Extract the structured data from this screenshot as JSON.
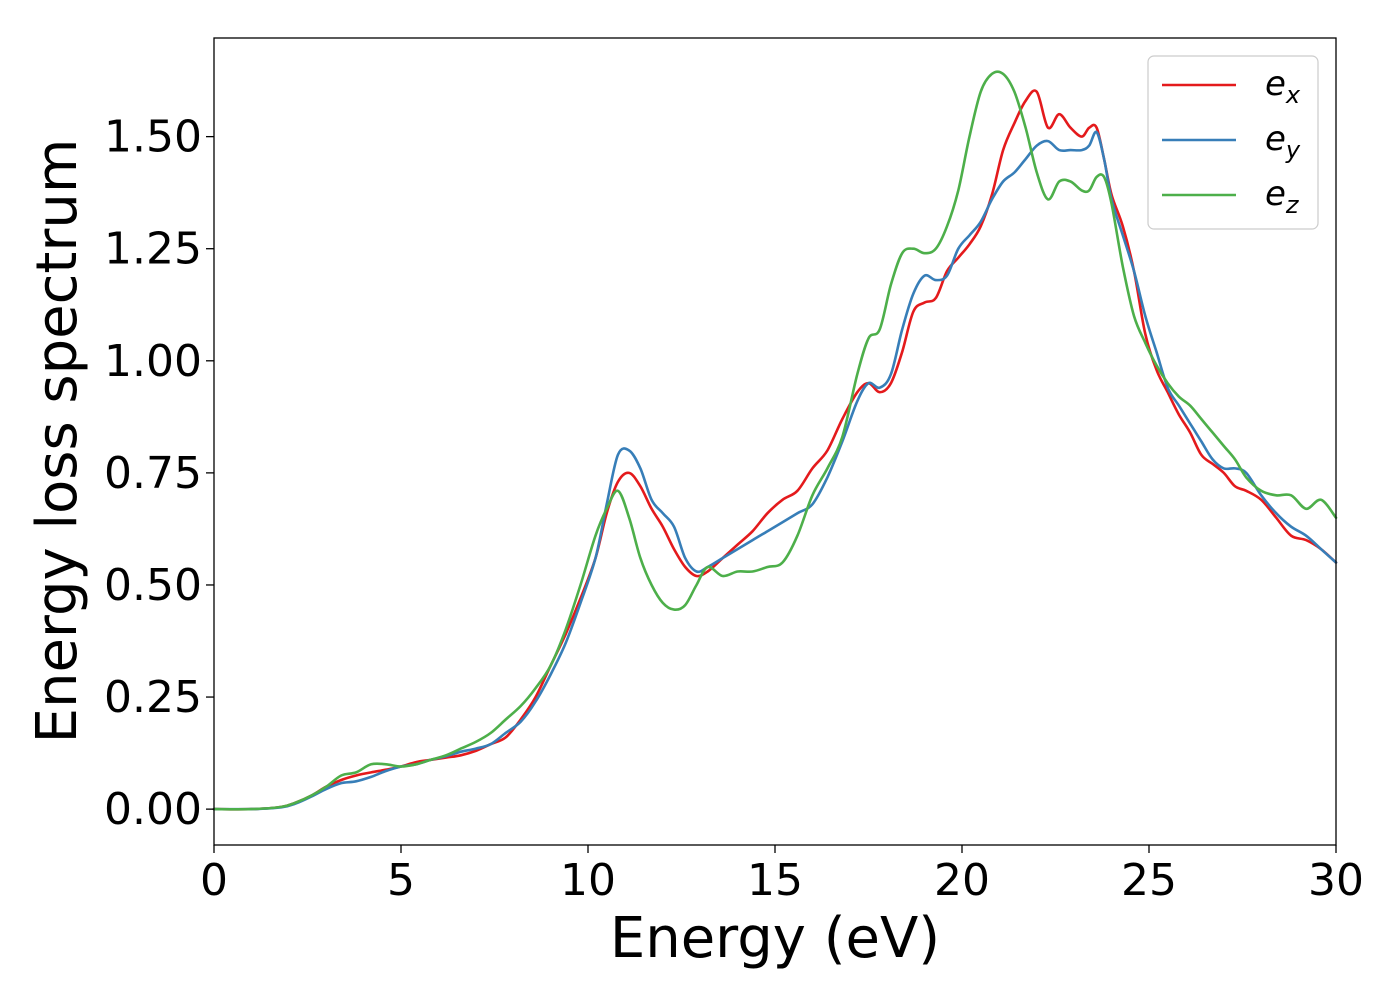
{
  "chart_data": {
    "type": "line",
    "title": "",
    "xlabel": "Energy (eV)",
    "ylabel": "Energy loss spectrum",
    "xlim": [
      0,
      30
    ],
    "ylim": [
      -0.08,
      1.72
    ],
    "xticks": [
      0,
      5,
      10,
      15,
      20,
      25,
      30
    ],
    "xtick_labels": [
      "0",
      "5",
      "10",
      "15",
      "20",
      "25",
      "30"
    ],
    "yticks": [
      0.0,
      0.25,
      0.5,
      0.75,
      1.0,
      1.25,
      1.5
    ],
    "ytick_labels": [
      "0.00",
      "0.25",
      "0.50",
      "0.75",
      "1.00",
      "1.25",
      "1.50"
    ],
    "grid": false,
    "legend": {
      "position": "top-right",
      "entries": [
        {
          "base": "e",
          "sub": "x"
        },
        {
          "base": "e",
          "sub": "y"
        },
        {
          "base": "e",
          "sub": "z"
        }
      ]
    },
    "series": [
      {
        "name": "e_x",
        "color": "#e41a1c",
        "x": [
          0,
          1,
          1.8,
          2.2,
          2.6,
          3,
          3.4,
          3.8,
          4.2,
          4.6,
          5,
          5.4,
          5.8,
          6.2,
          6.6,
          7,
          7.4,
          7.8,
          8.2,
          8.6,
          9,
          9.4,
          9.8,
          10.2,
          10.5,
          10.8,
          11.1,
          11.4,
          11.7,
          12,
          12.3,
          12.6,
          12.9,
          13.2,
          13.6,
          14,
          14.4,
          14.8,
          15.2,
          15.6,
          16,
          16.4,
          16.8,
          17.2,
          17.5,
          17.8,
          18.1,
          18.4,
          18.7,
          19,
          19.3,
          19.6,
          19.9,
          20.2,
          20.5,
          20.8,
          21.1,
          21.4,
          21.7,
          22,
          22.3,
          22.6,
          22.9,
          23.2,
          23.4,
          23.6,
          23.8,
          24,
          24.3,
          24.6,
          24.9,
          25.2,
          25.5,
          25.8,
          26.1,
          26.4,
          26.7,
          27,
          27.3,
          27.6,
          28,
          28.4,
          28.8,
          29.2,
          29.6,
          30
        ],
        "y": [
          0.0,
          0.0,
          0.005,
          0.015,
          0.03,
          0.05,
          0.065,
          0.075,
          0.082,
          0.088,
          0.095,
          0.105,
          0.11,
          0.115,
          0.12,
          0.13,
          0.145,
          0.16,
          0.2,
          0.25,
          0.32,
          0.39,
          0.47,
          0.56,
          0.66,
          0.73,
          0.75,
          0.72,
          0.67,
          0.63,
          0.58,
          0.54,
          0.52,
          0.53,
          0.56,
          0.59,
          0.62,
          0.66,
          0.69,
          0.71,
          0.76,
          0.8,
          0.87,
          0.93,
          0.95,
          0.93,
          0.95,
          1.02,
          1.11,
          1.13,
          1.14,
          1.2,
          1.23,
          1.26,
          1.3,
          1.37,
          1.47,
          1.53,
          1.58,
          1.6,
          1.52,
          1.55,
          1.52,
          1.5,
          1.52,
          1.52,
          1.45,
          1.37,
          1.3,
          1.2,
          1.06,
          0.98,
          0.93,
          0.88,
          0.84,
          0.79,
          0.77,
          0.75,
          0.72,
          0.71,
          0.69,
          0.65,
          0.61,
          0.6,
          0.58,
          0.55
        ]
      },
      {
        "name": "e_y",
        "color": "#377eb8",
        "x": [
          0,
          1,
          1.8,
          2.2,
          2.6,
          3,
          3.4,
          3.8,
          4.2,
          4.6,
          5,
          5.4,
          5.8,
          6.2,
          6.6,
          7,
          7.4,
          7.8,
          8.2,
          8.6,
          9,
          9.4,
          9.8,
          10.2,
          10.5,
          10.8,
          11.1,
          11.4,
          11.7,
          12,
          12.3,
          12.6,
          12.9,
          13.2,
          13.6,
          14,
          14.4,
          14.8,
          15.2,
          15.6,
          16,
          16.4,
          16.8,
          17.2,
          17.5,
          17.8,
          18.1,
          18.4,
          18.7,
          19,
          19.3,
          19.6,
          19.9,
          20.2,
          20.5,
          20.8,
          21.1,
          21.4,
          21.7,
          22,
          22.3,
          22.6,
          22.9,
          23.2,
          23.4,
          23.6,
          23.8,
          24,
          24.3,
          24.6,
          24.9,
          25.2,
          25.5,
          25.8,
          26.1,
          26.4,
          26.7,
          27,
          27.3,
          27.6,
          28,
          28.4,
          28.8,
          29.2,
          29.6,
          30
        ],
        "y": [
          0.0,
          0.0,
          0.004,
          0.013,
          0.028,
          0.045,
          0.058,
          0.062,
          0.072,
          0.085,
          0.095,
          0.1,
          0.11,
          0.118,
          0.128,
          0.135,
          0.145,
          0.17,
          0.195,
          0.24,
          0.3,
          0.37,
          0.46,
          0.56,
          0.68,
          0.79,
          0.8,
          0.76,
          0.69,
          0.66,
          0.63,
          0.56,
          0.53,
          0.54,
          0.56,
          0.58,
          0.6,
          0.62,
          0.64,
          0.66,
          0.68,
          0.74,
          0.82,
          0.91,
          0.95,
          0.94,
          0.97,
          1.07,
          1.15,
          1.19,
          1.18,
          1.19,
          1.25,
          1.28,
          1.31,
          1.36,
          1.4,
          1.42,
          1.45,
          1.48,
          1.49,
          1.47,
          1.47,
          1.47,
          1.48,
          1.51,
          1.45,
          1.36,
          1.28,
          1.2,
          1.1,
          1.02,
          0.94,
          0.9,
          0.86,
          0.82,
          0.78,
          0.76,
          0.76,
          0.75,
          0.7,
          0.66,
          0.63,
          0.61,
          0.58,
          0.55
        ]
      },
      {
        "name": "e_z",
        "color": "#4daf4a",
        "x": [
          0,
          1,
          1.8,
          2.2,
          2.6,
          3,
          3.4,
          3.8,
          4.2,
          4.6,
          5,
          5.4,
          5.8,
          6.2,
          6.6,
          7,
          7.4,
          7.8,
          8.2,
          8.6,
          9,
          9.4,
          9.8,
          10.2,
          10.5,
          10.8,
          11.1,
          11.4,
          11.7,
          12,
          12.3,
          12.6,
          12.9,
          13.2,
          13.6,
          14,
          14.4,
          14.8,
          15.2,
          15.6,
          16,
          16.4,
          16.8,
          17.2,
          17.5,
          17.8,
          18.1,
          18.4,
          18.7,
          19,
          19.3,
          19.6,
          19.9,
          20.2,
          20.5,
          20.8,
          21.1,
          21.4,
          21.7,
          22,
          22.3,
          22.6,
          22.9,
          23.2,
          23.4,
          23.6,
          23.8,
          24,
          24.3,
          24.6,
          24.9,
          25.2,
          25.5,
          25.8,
          26.1,
          26.4,
          26.7,
          27,
          27.3,
          27.6,
          28,
          28.4,
          28.8,
          29.2,
          29.6,
          30
        ],
        "y": [
          0.0,
          0.0,
          0.005,
          0.015,
          0.03,
          0.05,
          0.075,
          0.082,
          0.1,
          0.1,
          0.095,
          0.1,
          0.11,
          0.12,
          0.135,
          0.15,
          0.17,
          0.2,
          0.23,
          0.27,
          0.32,
          0.4,
          0.5,
          0.61,
          0.67,
          0.71,
          0.65,
          0.56,
          0.5,
          0.46,
          0.445,
          0.455,
          0.5,
          0.54,
          0.52,
          0.53,
          0.53,
          0.54,
          0.55,
          0.61,
          0.7,
          0.76,
          0.83,
          0.97,
          1.05,
          1.07,
          1.17,
          1.24,
          1.25,
          1.24,
          1.25,
          1.3,
          1.38,
          1.5,
          1.6,
          1.64,
          1.64,
          1.6,
          1.52,
          1.42,
          1.36,
          1.4,
          1.4,
          1.38,
          1.38,
          1.41,
          1.41,
          1.35,
          1.21,
          1.1,
          1.04,
          0.99,
          0.95,
          0.92,
          0.9,
          0.87,
          0.84,
          0.81,
          0.78,
          0.74,
          0.71,
          0.7,
          0.7,
          0.67,
          0.69,
          0.65
        ]
      }
    ]
  }
}
